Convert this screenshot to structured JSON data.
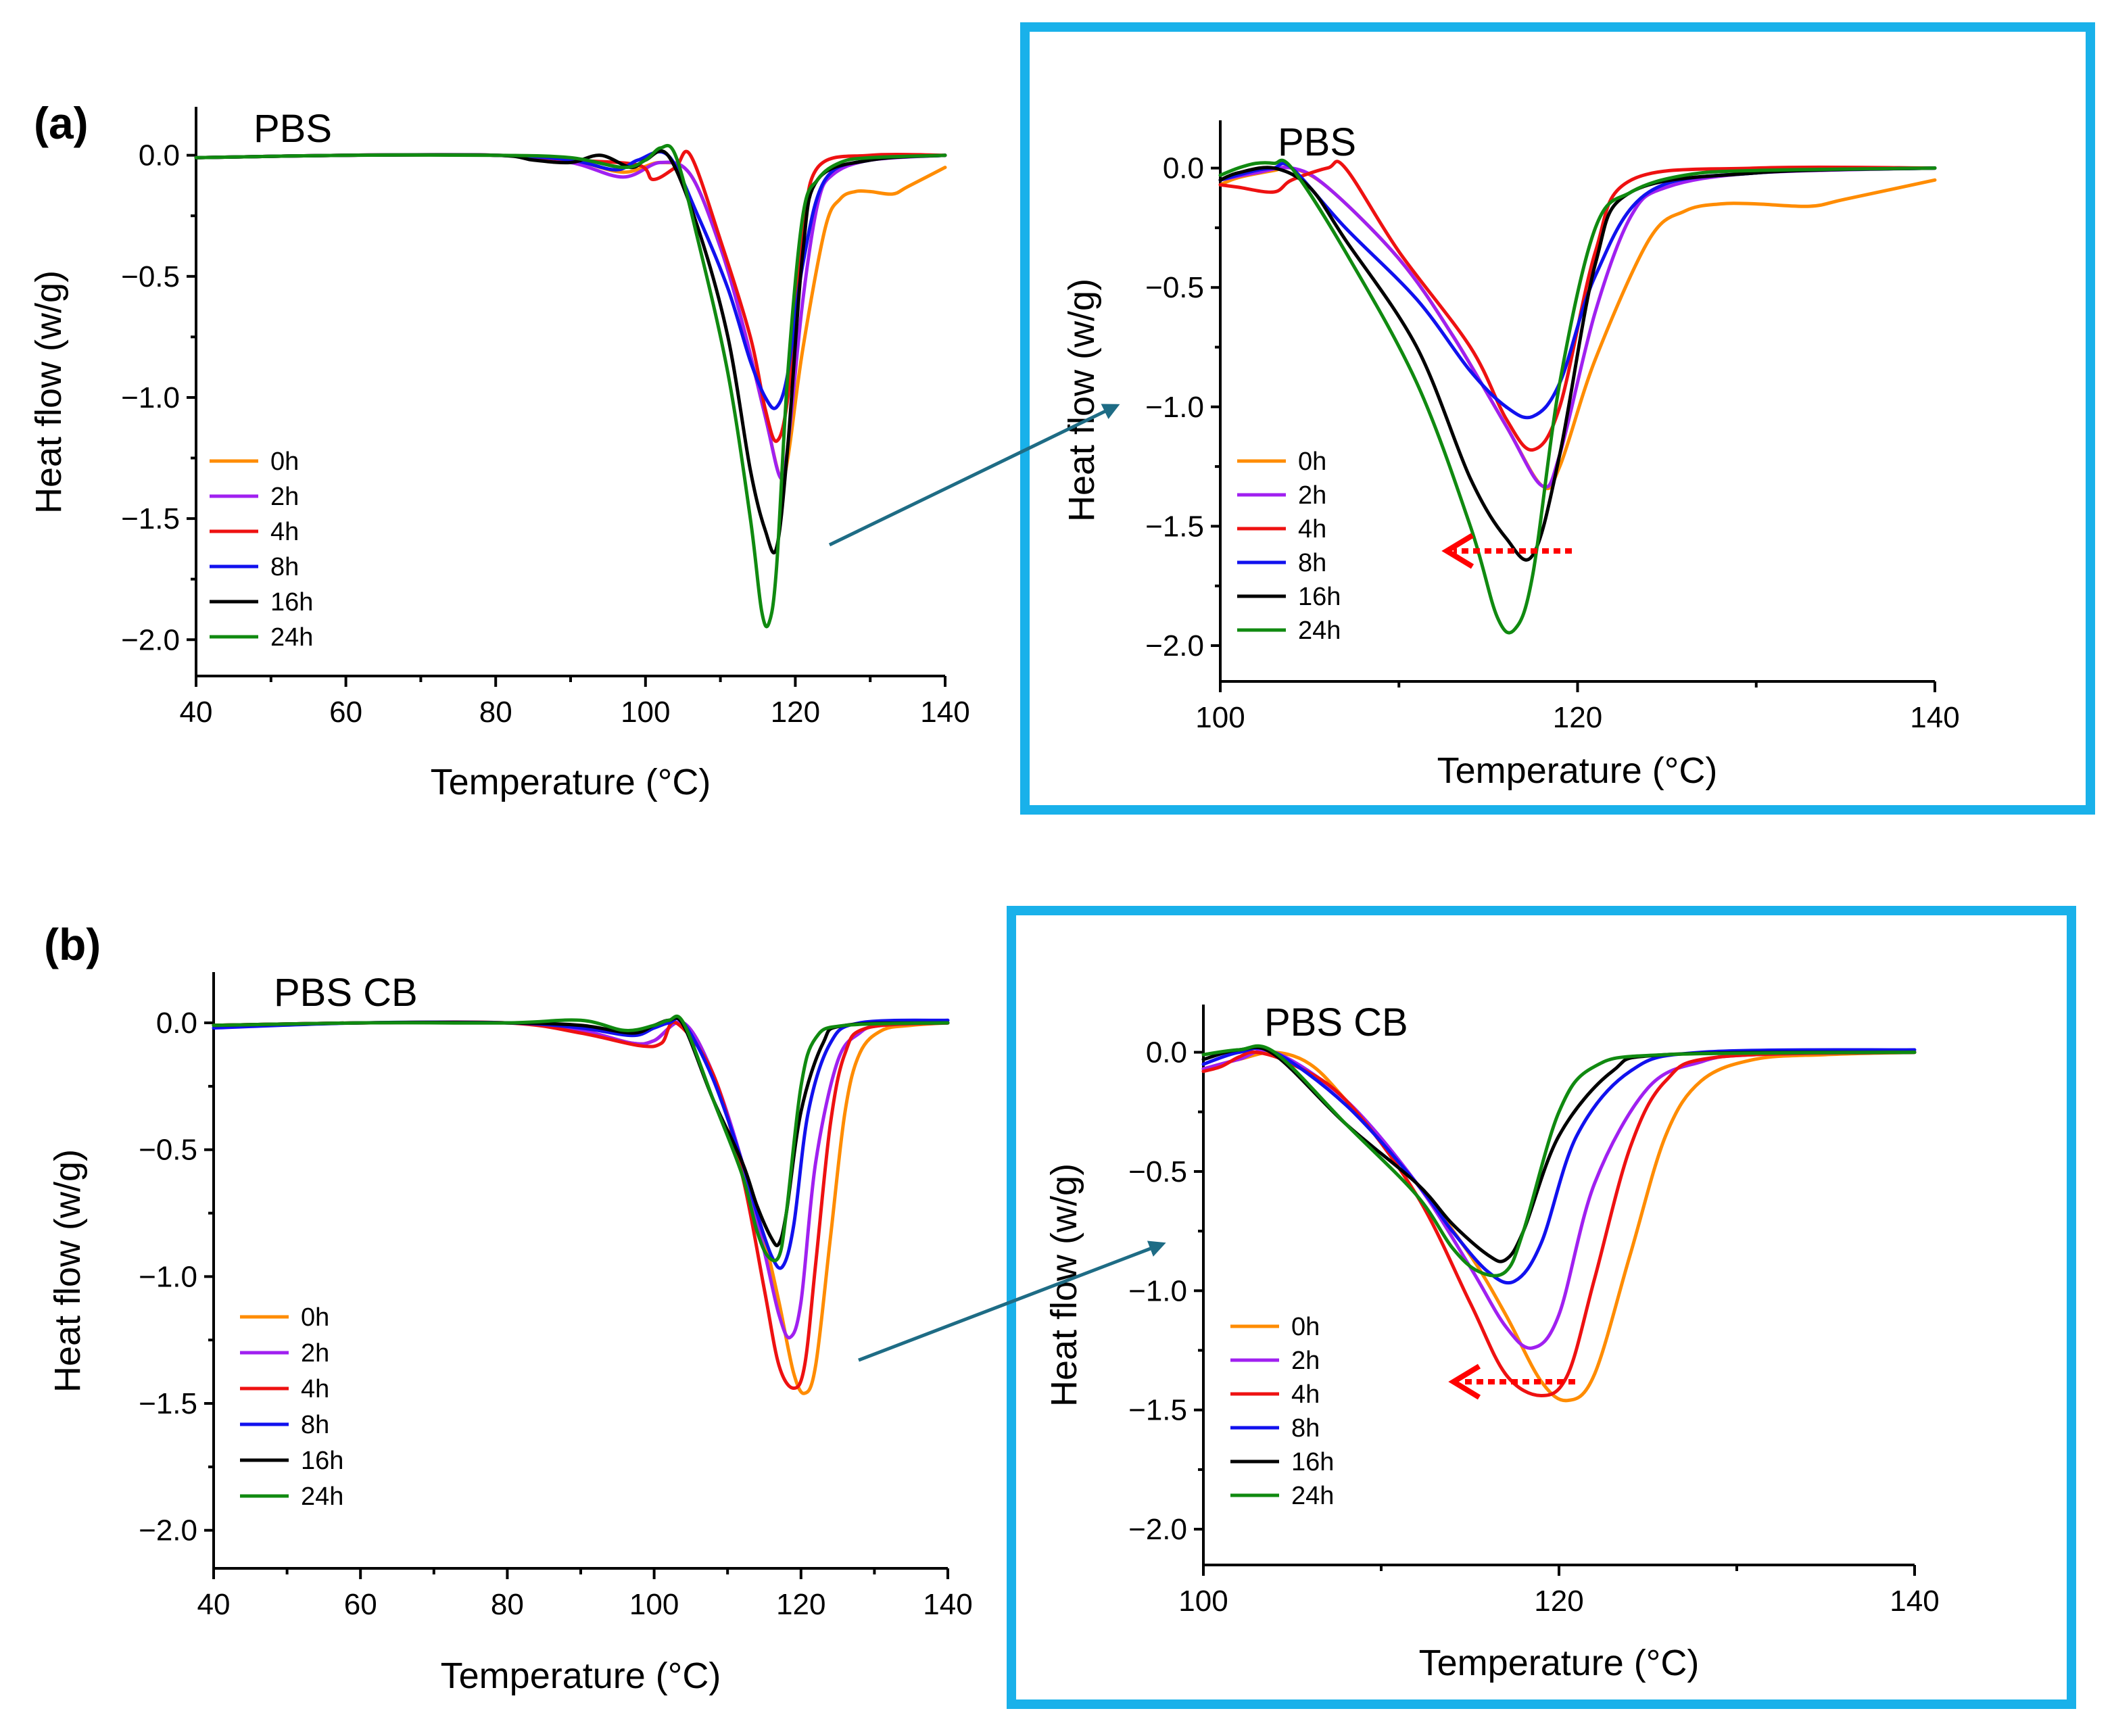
{
  "panel_labels": [
    "(a)",
    "(b)"
  ],
  "colors": {
    "0h": "#ff8c00",
    "2h": "#a020f0",
    "4h": "#ee1111",
    "8h": "#1111ee",
    "16h": "#000000",
    "24h": "#108a10",
    "frame": "#19b1ea",
    "connector": "#1e6c85",
    "shift_arrow": "#ff0000"
  },
  "chart_data": [
    {
      "type": "line",
      "id": "a-main",
      "title": "PBS",
      "xlabel": "Temperature (°C)",
      "ylabel": "Heat flow (w/g)",
      "xlim": [
        40,
        140
      ],
      "ylim": [
        -2.15,
        0.2
      ],
      "xticks": [
        40,
        60,
        80,
        100,
        120,
        140
      ],
      "xtick_labels": [
        "40",
        "60",
        "80",
        "100",
        "120",
        "140"
      ],
      "yticks": [
        0.0,
        -0.5,
        -1.0,
        -1.5,
        -2.0
      ],
      "ytick_labels": [
        "0.0",
        "−0.5",
        "−1.0",
        "−1.5",
        "−2.0"
      ],
      "legend": [
        "0h",
        "2h",
        "4h",
        "8h",
        "16h",
        "24h"
      ],
      "series": [
        {
          "name": "0h",
          "x": [
            40,
            60,
            80,
            90,
            97,
            102,
            106,
            110,
            113,
            116,
            118,
            119,
            121,
            124,
            126,
            128,
            130,
            133,
            135,
            140
          ],
          "y": [
            -0.01,
            0.0,
            0.0,
            -0.02,
            -0.07,
            -0.03,
            -0.08,
            -0.38,
            -0.7,
            -1.08,
            -1.33,
            -1.25,
            -0.8,
            -0.3,
            -0.18,
            -0.15,
            -0.15,
            -0.16,
            -0.13,
            -0.05
          ]
        },
        {
          "name": "2h",
          "x": [
            40,
            60,
            80,
            90,
            97,
            102,
            106,
            110,
            113,
            116,
            118,
            119,
            121,
            123,
            125,
            130,
            140
          ],
          "y": [
            -0.01,
            0.0,
            0.0,
            -0.03,
            -0.09,
            -0.03,
            -0.08,
            -0.38,
            -0.7,
            -1.08,
            -1.33,
            -1.2,
            -0.6,
            -0.2,
            -0.08,
            -0.02,
            0.0
          ]
        },
        {
          "name": "4h",
          "x": [
            40,
            60,
            80,
            90,
            99,
            101,
            104,
            106,
            110,
            114,
            116,
            117.5,
            119,
            121,
            123,
            130,
            140
          ],
          "y": [
            -0.01,
            0.0,
            0.0,
            -0.02,
            -0.04,
            -0.1,
            -0.05,
            0.0,
            -0.35,
            -0.75,
            -1.05,
            -1.18,
            -1.0,
            -0.35,
            -0.05,
            0.0,
            0.0
          ]
        },
        {
          "name": "8h",
          "x": [
            40,
            60,
            80,
            90,
            96,
            99,
            103,
            107,
            111,
            114,
            116,
            117.5,
            119,
            121,
            124,
            130,
            140
          ],
          "y": [
            -0.01,
            0.0,
            0.0,
            -0.02,
            -0.06,
            -0.02,
            0.0,
            -0.25,
            -0.55,
            -0.85,
            -1.0,
            -1.04,
            -0.9,
            -0.45,
            -0.1,
            -0.02,
            0.0
          ]
        },
        {
          "name": "16h",
          "x": [
            40,
            60,
            80,
            85,
            90,
            94,
            98,
            100,
            103,
            107,
            111,
            114,
            116,
            117.5,
            119,
            121,
            123,
            130,
            140
          ],
          "y": [
            -0.01,
            0.0,
            0.0,
            -0.02,
            -0.03,
            0.0,
            -0.05,
            -0.02,
            0.0,
            -0.3,
            -0.75,
            -1.3,
            -1.55,
            -1.62,
            -1.2,
            -0.4,
            -0.1,
            -0.02,
            0.0
          ]
        },
        {
          "name": "24h",
          "x": [
            40,
            60,
            80,
            90,
            97,
            100,
            102,
            104,
            107,
            111,
            114,
            115.5,
            116.5,
            117.5,
            119,
            121,
            123,
            126,
            130,
            140
          ],
          "y": [
            -0.01,
            0.0,
            0.0,
            -0.01,
            -0.05,
            -0.02,
            0.03,
            0.0,
            -0.35,
            -0.9,
            -1.5,
            -1.88,
            -1.93,
            -1.7,
            -0.9,
            -0.25,
            -0.1,
            -0.03,
            -0.01,
            0.0
          ]
        }
      ]
    },
    {
      "type": "line",
      "id": "a-zoom",
      "title": "PBS",
      "xlabel": "Temperature (°C)",
      "ylabel": "Heat flow (w/g)",
      "xlim": [
        100,
        140
      ],
      "ylim": [
        -2.15,
        0.2
      ],
      "xticks": [
        100,
        120,
        140
      ],
      "xtick_labels": [
        "100",
        "120",
        "140"
      ],
      "yticks": [
        0.0,
        -0.5,
        -1.0,
        -1.5,
        -2.0
      ],
      "ytick_labels": [
        "0.0",
        "−0.5",
        "−1.0",
        "−1.5",
        "−2.0"
      ],
      "legend": [
        "0h",
        "2h",
        "4h",
        "8h",
        "16h",
        "24h"
      ],
      "series": [
        {
          "name": "0h",
          "x": [
            100,
            101,
            103,
            104,
            106,
            110,
            113,
            116,
            118,
            119,
            121,
            124,
            126,
            128,
            130,
            133,
            135,
            140
          ],
          "y": [
            -0.07,
            -0.04,
            -0.01,
            0.0,
            -0.08,
            -0.38,
            -0.7,
            -1.08,
            -1.33,
            -1.25,
            -0.8,
            -0.3,
            -0.18,
            -0.15,
            -0.15,
            -0.16,
            -0.13,
            -0.05
          ]
        },
        {
          "name": "2h",
          "x": [
            100,
            102,
            104,
            106,
            110,
            113,
            116,
            118,
            119,
            121,
            123,
            125,
            130,
            140
          ],
          "y": [
            -0.05,
            -0.02,
            0.0,
            -0.08,
            -0.38,
            -0.7,
            -1.08,
            -1.33,
            -1.2,
            -0.6,
            -0.2,
            -0.08,
            -0.02,
            0.0
          ]
        },
        {
          "name": "4h",
          "x": [
            100,
            101,
            103,
            104,
            106,
            107,
            110,
            114,
            116,
            117.5,
            119,
            121,
            123,
            130,
            140
          ],
          "y": [
            -0.07,
            -0.08,
            -0.1,
            -0.05,
            0.0,
            0.0,
            -0.35,
            -0.75,
            -1.05,
            -1.18,
            -1.0,
            -0.35,
            -0.05,
            0.0,
            0.0
          ]
        },
        {
          "name": "8h",
          "x": [
            100,
            102,
            103,
            104,
            107,
            111,
            114,
            116,
            117.5,
            119,
            121,
            124,
            130,
            140
          ],
          "y": [
            -0.05,
            -0.01,
            0.0,
            0.0,
            -0.25,
            -0.55,
            -0.85,
            -1.0,
            -1.04,
            -0.9,
            -0.45,
            -0.1,
            -0.02,
            0.0
          ]
        },
        {
          "name": "16h",
          "x": [
            100,
            101,
            103,
            105,
            107,
            111,
            114,
            116,
            117.5,
            119,
            121,
            123,
            130,
            140
          ],
          "y": [
            -0.05,
            -0.02,
            0.0,
            -0.08,
            -0.3,
            -0.75,
            -1.3,
            -1.55,
            -1.62,
            -1.2,
            -0.4,
            -0.1,
            -0.02,
            0.0
          ]
        },
        {
          "name": "24h",
          "x": [
            100,
            101,
            102,
            103,
            104,
            107,
            111,
            114,
            115.5,
            116.5,
            117.5,
            119,
            121,
            123,
            126,
            130,
            140
          ],
          "y": [
            -0.03,
            0.0,
            0.02,
            0.02,
            0.0,
            -0.35,
            -0.9,
            -1.5,
            -1.88,
            -1.93,
            -1.7,
            -0.9,
            -0.25,
            -0.1,
            -0.03,
            -0.01,
            0.0
          ]
        }
      ]
    },
    {
      "type": "line",
      "id": "b-main",
      "title": "PBS CB",
      "xlabel": "Temperature (°C)",
      "ylabel": "Heat flow (w/g)",
      "xlim": [
        40,
        140
      ],
      "ylim": [
        -2.15,
        0.2
      ],
      "xticks": [
        40,
        60,
        80,
        100,
        120,
        140
      ],
      "xtick_labels": [
        "40",
        "60",
        "80",
        "100",
        "120",
        "140"
      ],
      "yticks": [
        0.0,
        -0.5,
        -1.0,
        -1.5,
        -2.0
      ],
      "ytick_labels": [
        "0.0",
        "−0.5",
        "−1.0",
        "−1.5",
        "−2.0"
      ],
      "legend": [
        "0h",
        "2h",
        "4h",
        "8h",
        "16h",
        "24h"
      ],
      "series": [
        {
          "name": "0h",
          "x": [
            40,
            60,
            80,
            90,
            97,
            100,
            104,
            108,
            112,
            115,
            117,
            119,
            120.5,
            122,
            124,
            126,
            128,
            131,
            135,
            140
          ],
          "y": [
            -0.01,
            0.0,
            0.0,
            -0.03,
            -0.08,
            -0.07,
            0.0,
            -0.2,
            -0.55,
            -0.85,
            -1.1,
            -1.38,
            -1.46,
            -1.35,
            -0.85,
            -0.35,
            -0.12,
            -0.03,
            -0.01,
            0.0
          ]
        },
        {
          "name": "2h",
          "x": [
            40,
            60,
            80,
            90,
            97,
            100,
            104,
            108,
            112,
            115,
            117,
            118.5,
            120,
            122,
            125,
            128,
            131,
            140
          ],
          "y": [
            -0.01,
            0.0,
            0.0,
            -0.03,
            -0.08,
            -0.07,
            0.0,
            -0.2,
            -0.55,
            -0.9,
            -1.15,
            -1.24,
            -1.1,
            -0.55,
            -0.15,
            -0.04,
            -0.01,
            0.0
          ]
        },
        {
          "name": "4h",
          "x": [
            40,
            60,
            80,
            90,
            98,
            101,
            103,
            108,
            112,
            115,
            117,
            119,
            120.5,
            122,
            124,
            126,
            129,
            140
          ],
          "y": [
            -0.01,
            0.0,
            0.0,
            -0.04,
            -0.09,
            -0.08,
            0.0,
            -0.2,
            -0.6,
            -1.05,
            -1.35,
            -1.44,
            -1.35,
            -0.95,
            -0.4,
            -0.12,
            -0.02,
            0.0
          ]
        },
        {
          "name": "8h",
          "x": [
            40,
            60,
            80,
            90,
            97,
            100,
            102,
            104,
            108,
            112,
            114,
            116,
            117.5,
            119,
            121,
            124,
            128,
            140
          ],
          "y": [
            -0.02,
            0.0,
            0.0,
            -0.02,
            -0.05,
            -0.02,
            0.0,
            0.0,
            -0.22,
            -0.55,
            -0.75,
            -0.92,
            -0.96,
            -0.8,
            -0.35,
            -0.08,
            0.0,
            0.01
          ]
        },
        {
          "name": "16h",
          "x": [
            40,
            60,
            80,
            90,
            97,
            100,
            102,
            104,
            108,
            112,
            114,
            116,
            117,
            118,
            120,
            123,
            126,
            140
          ],
          "y": [
            -0.01,
            0.0,
            0.0,
            -0.01,
            -0.04,
            -0.01,
            0.01,
            -0.01,
            -0.3,
            -0.55,
            -0.72,
            -0.85,
            -0.87,
            -0.75,
            -0.35,
            -0.08,
            -0.01,
            0.0
          ]
        },
        {
          "name": "24h",
          "x": [
            40,
            60,
            80,
            90,
            96,
            100,
            102,
            104,
            108,
            112,
            114,
            115.5,
            117,
            118,
            120,
            122,
            126,
            140
          ],
          "y": [
            -0.01,
            0.0,
            0.0,
            0.01,
            -0.03,
            -0.01,
            0.01,
            0.0,
            -0.3,
            -0.6,
            -0.82,
            -0.92,
            -0.92,
            -0.75,
            -0.25,
            -0.06,
            -0.01,
            0.0
          ]
        }
      ]
    },
    {
      "type": "line",
      "id": "b-zoom",
      "title": "PBS CB",
      "xlabel": "Temperature (°C)",
      "ylabel": "Heat flow (w/g)",
      "xlim": [
        100,
        140
      ],
      "ylim": [
        -2.15,
        0.2
      ],
      "xticks": [
        100,
        120,
        140
      ],
      "xtick_labels": [
        "100",
        "120",
        "140"
      ],
      "yticks": [
        0.0,
        -0.5,
        -1.0,
        -1.5,
        -2.0
      ],
      "ytick_labels": [
        "0.0",
        "−0.5",
        "−1.0",
        "−1.5",
        "−2.0"
      ],
      "legend": [
        "0h",
        "2h",
        "4h",
        "8h",
        "16h",
        "24h"
      ],
      "series": [
        {
          "name": "0h",
          "x": [
            100,
            102,
            104,
            106,
            108,
            112,
            115,
            117,
            119,
            120.5,
            122,
            124,
            126,
            128,
            131,
            135,
            140
          ],
          "y": [
            -0.07,
            -0.03,
            0.0,
            -0.05,
            -0.2,
            -0.55,
            -0.85,
            -1.1,
            -1.38,
            -1.46,
            -1.35,
            -0.85,
            -0.35,
            -0.12,
            -0.03,
            -0.01,
            0.0
          ]
        },
        {
          "name": "2h",
          "x": [
            100,
            102,
            104,
            108,
            112,
            115,
            117,
            118.5,
            120,
            122,
            125,
            128,
            131,
            140
          ],
          "y": [
            -0.07,
            -0.03,
            0.0,
            -0.2,
            -0.55,
            -0.9,
            -1.15,
            -1.24,
            -1.1,
            -0.55,
            -0.15,
            -0.04,
            -0.01,
            0.0
          ]
        },
        {
          "name": "4h",
          "x": [
            100,
            101,
            102,
            103,
            105,
            108,
            112,
            115,
            117,
            119,
            120.5,
            122,
            124,
            126,
            129,
            140
          ],
          "y": [
            -0.08,
            -0.06,
            -0.02,
            0.0,
            -0.05,
            -0.2,
            -0.6,
            -1.05,
            -1.35,
            -1.44,
            -1.35,
            -0.95,
            -0.4,
            -0.12,
            -0.02,
            0.0
          ]
        },
        {
          "name": "8h",
          "x": [
            100,
            102,
            104,
            108,
            112,
            114,
            116,
            117.5,
            119,
            121,
            124,
            128,
            140
          ],
          "y": [
            -0.05,
            0.0,
            0.0,
            -0.22,
            -0.55,
            -0.75,
            -0.92,
            -0.96,
            -0.8,
            -0.35,
            -0.08,
            0.0,
            0.01
          ]
        },
        {
          "name": "16h",
          "x": [
            100,
            102,
            104,
            108,
            112,
            114,
            116,
            117,
            118,
            120,
            123,
            126,
            140
          ],
          "y": [
            -0.03,
            0.01,
            -0.01,
            -0.3,
            -0.55,
            -0.72,
            -0.85,
            -0.87,
            -0.75,
            -0.35,
            -0.08,
            -0.01,
            0.0
          ]
        },
        {
          "name": "24h",
          "x": [
            100,
            102,
            104,
            108,
            112,
            114,
            115.5,
            117,
            118,
            120,
            122,
            126,
            140
          ],
          "y": [
            -0.01,
            0.01,
            0.0,
            -0.3,
            -0.6,
            -0.82,
            -0.92,
            -0.92,
            -0.75,
            -0.25,
            -0.06,
            -0.01,
            0.0
          ]
        }
      ]
    }
  ]
}
